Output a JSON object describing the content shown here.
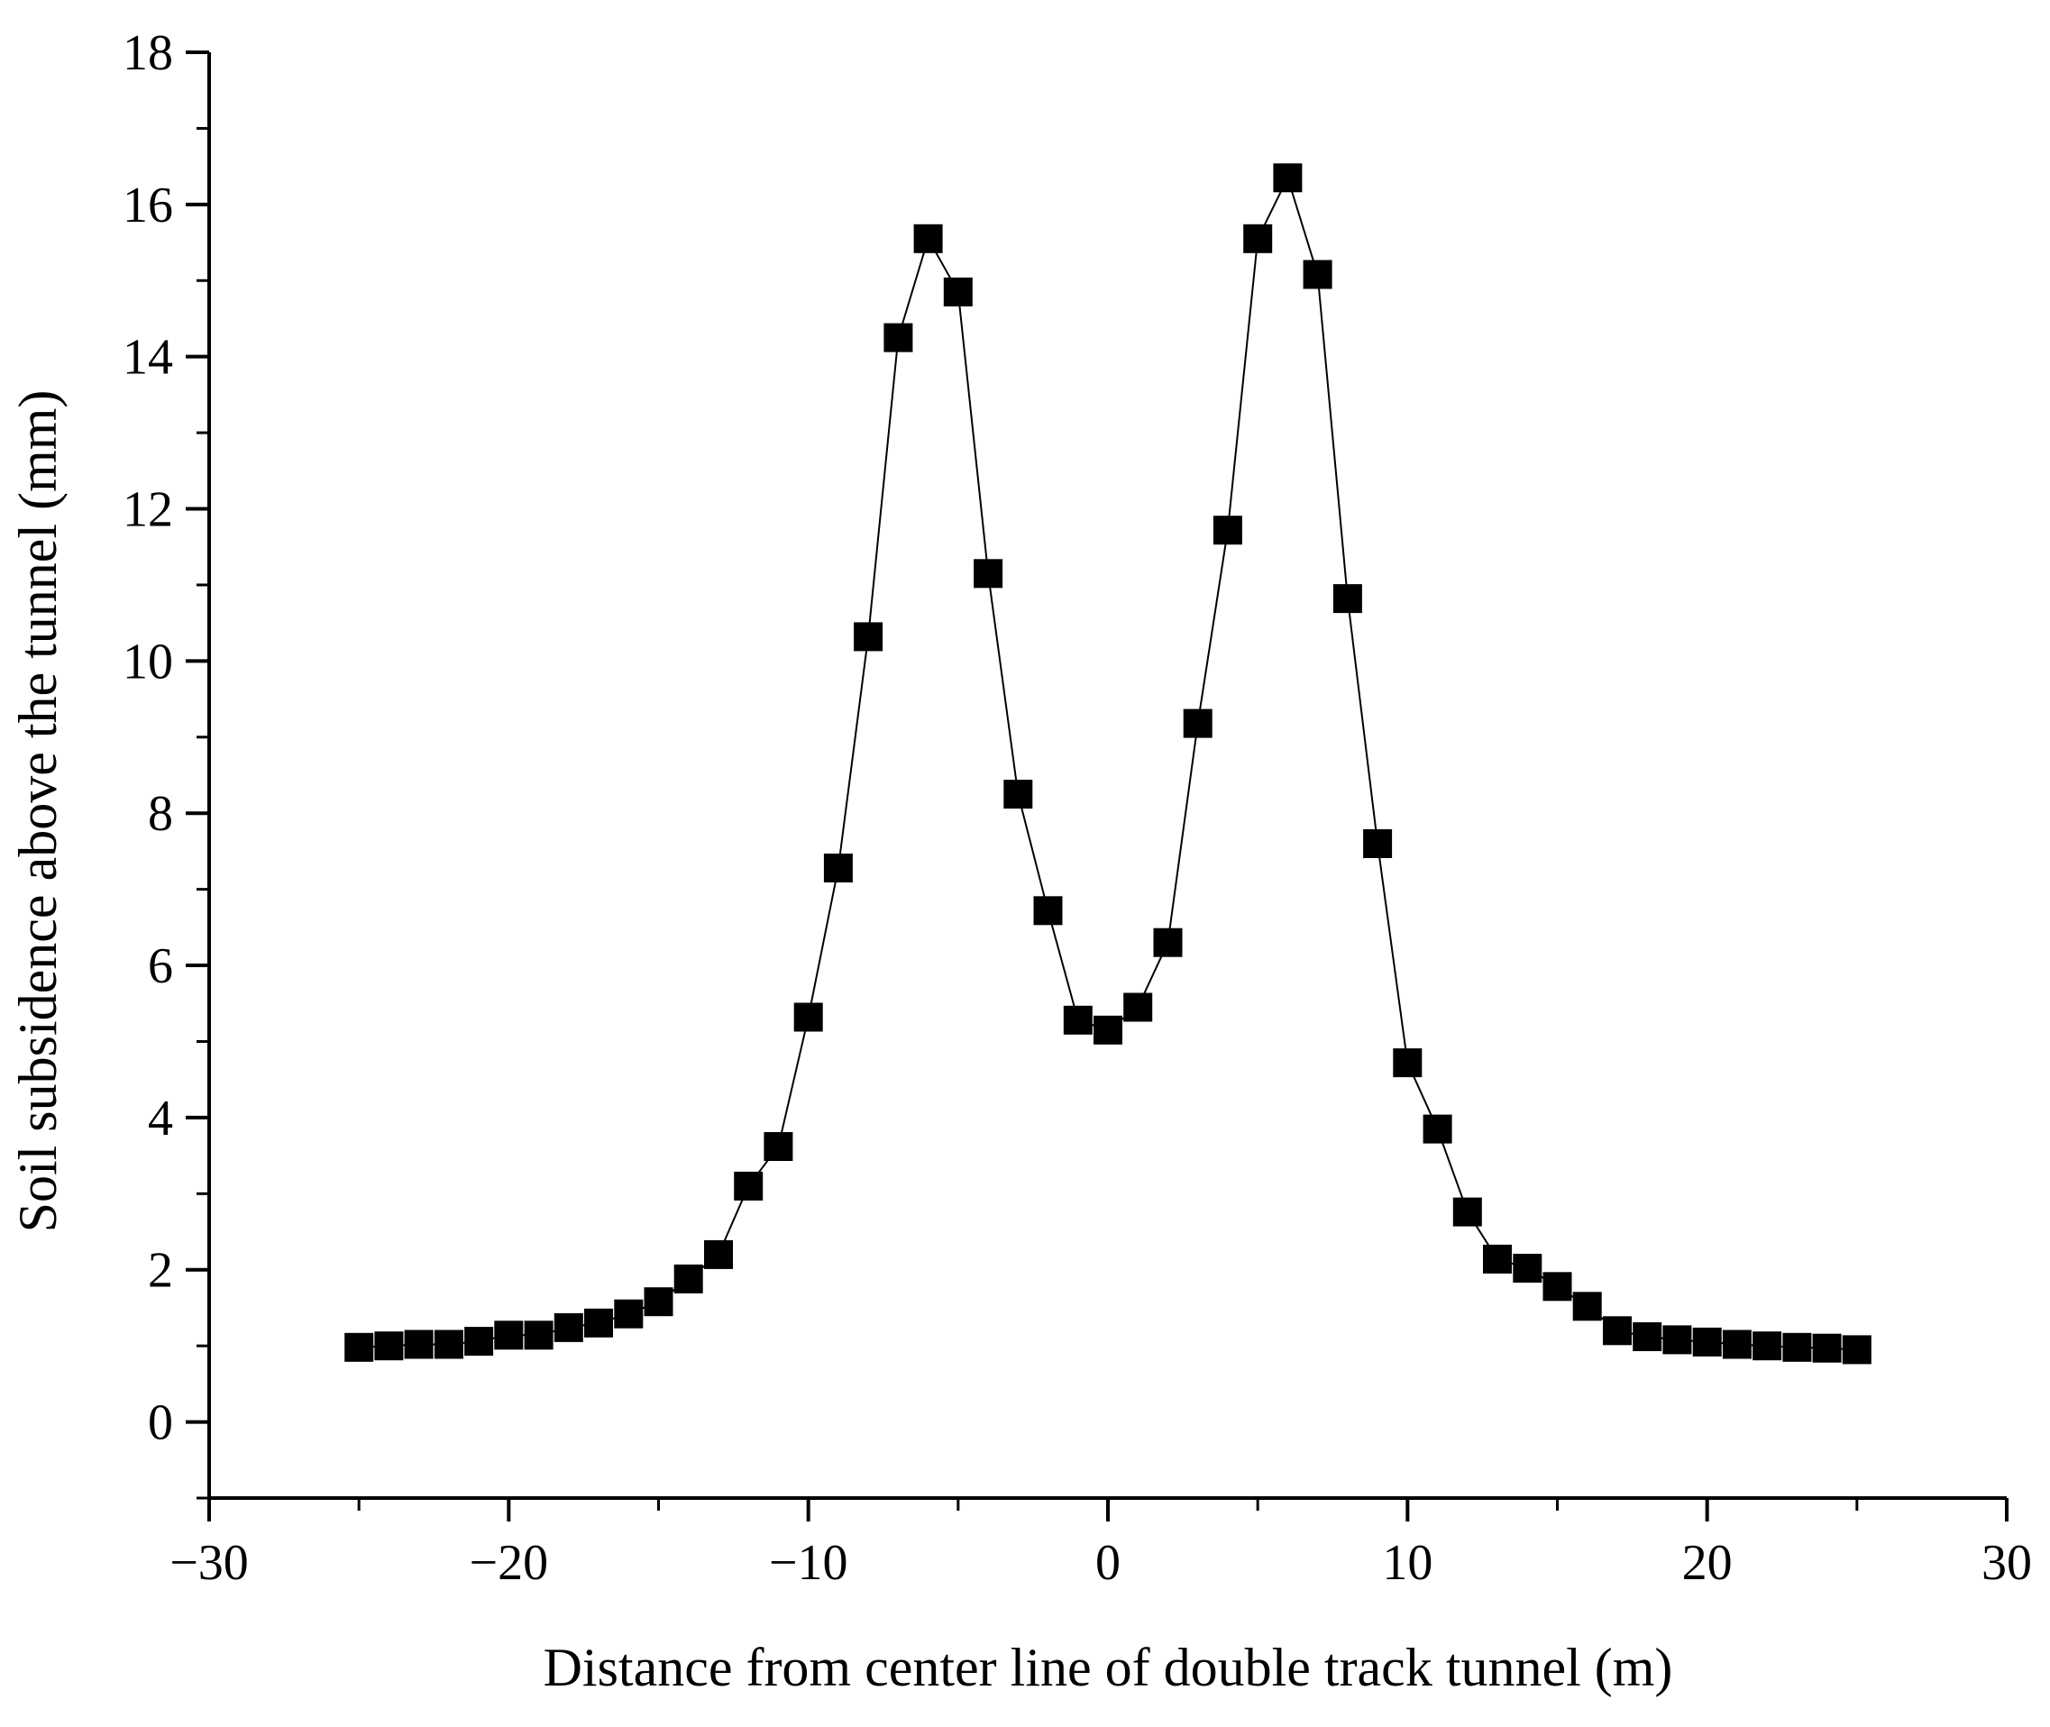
{
  "chart_data": {
    "type": "scatter",
    "title": "",
    "xlabel": "Distance from center line of double track tunnel (m)",
    "ylabel": "Soil subsidence above the tunnel (mm)",
    "xlim": [
      -30,
      30
    ],
    "ylim": [
      -1,
      18
    ],
    "x_ticks": [
      -30,
      -20,
      -10,
      0,
      10,
      20,
      30
    ],
    "x_tick_labels": [
      "−30",
      "−20",
      "−10",
      "0",
      "10",
      "20",
      "30"
    ],
    "y_ticks": [
      0,
      2,
      4,
      6,
      8,
      10,
      12,
      14,
      16,
      18
    ],
    "y_tick_labels": [
      "0",
      "2",
      "4",
      "6",
      "8",
      "10",
      "12",
      "14",
      "16",
      "18"
    ],
    "grid": false,
    "legend": "none",
    "marker": "square",
    "connected": true,
    "colors": {
      "marker": "#000000",
      "line": "#000000",
      "axis": "#000000"
    },
    "series": [
      {
        "x": [
          -25,
          -24,
          -23,
          -22,
          -21,
          -20,
          -19,
          -18,
          -17,
          -16,
          -15,
          -14,
          -13,
          -12,
          -11,
          -10,
          -9,
          -8,
          -7,
          -6,
          -5,
          -4,
          -3,
          -2,
          -1,
          0,
          1,
          2,
          3,
          4,
          5,
          6,
          7,
          8,
          9,
          10,
          11,
          12,
          13,
          14,
          15,
          16,
          17,
          18,
          19,
          20,
          21,
          22,
          23,
          24,
          25
        ],
        "y": [
          0.98,
          1.0,
          1.02,
          1.02,
          1.06,
          1.14,
          1.14,
          1.24,
          1.3,
          1.42,
          1.58,
          1.88,
          2.2,
          3.1,
          3.62,
          5.32,
          7.28,
          10.32,
          14.25,
          15.55,
          14.85,
          11.15,
          8.25,
          6.72,
          5.28,
          5.15,
          5.45,
          6.3,
          9.18,
          11.72,
          15.55,
          16.35,
          15.08,
          10.82,
          7.6,
          4.72,
          3.85,
          2.76,
          2.14,
          2.02,
          1.78,
          1.52,
          1.2,
          1.12,
          1.08,
          1.05,
          1.02,
          1.0,
          0.98,
          0.97,
          0.95
        ]
      }
    ]
  }
}
